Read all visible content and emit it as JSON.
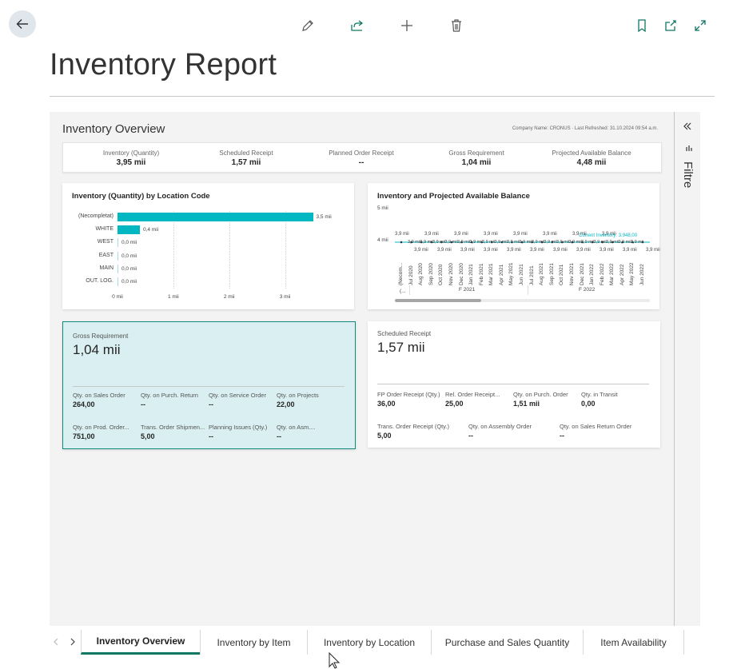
{
  "page": {
    "title": "Inventory Report"
  },
  "toolbar": {
    "icons": [
      "pencil-icon",
      "share-icon",
      "plus-icon",
      "trash-icon",
      "bookmark-icon",
      "open-in-new-window-icon",
      "expand-icon"
    ]
  },
  "filter_pane": {
    "label": "Filtre"
  },
  "overview": {
    "title": "Inventory Overview",
    "meta": "Company Name: CRONUS · Last Refreshed: 31.10.2024 09:54 a.m.",
    "kpis": [
      {
        "label": "Inventory (Quantity)",
        "value": "3,95 mii"
      },
      {
        "label": "Scheduled Receipt",
        "value": "1,57 mii"
      },
      {
        "label": "Planned Order Receipt",
        "value": "--"
      },
      {
        "label": "Gross Requirement",
        "value": "1,04 mii"
      },
      {
        "label": "Projected Available Balance",
        "value": "4,48 mii"
      }
    ]
  },
  "location_chart": {
    "title": "Inventory (Quantity) by Location Code",
    "categories": [
      "(Necompletat)",
      "WHITE",
      "WEST",
      "EAST",
      "MAIN",
      "OUT. LOG."
    ],
    "values": [
      3.5,
      0.4,
      0,
      0,
      0,
      0
    ],
    "value_labels": [
      "3,5 mii",
      "0,4 mii",
      "0,0 mii",
      "0,0 mii",
      "0,0 mii",
      "0,0 mii"
    ],
    "x_ticks": [
      "0 mii",
      "1 mii",
      "2 mii",
      "3 mii"
    ],
    "xlim": [
      0,
      3.55
    ]
  },
  "balance_chart": {
    "title": "Inventory and Projected Available Balance",
    "y_ticks": [
      "5 mii",
      "4 mii"
    ],
    "upper_labels": [
      "3,9 mii",
      "3,9 mii",
      "3,9 mii",
      "3,9 mii",
      "3,9 mii",
      "3,9 mii",
      "3,9 mii",
      "3,9 mii"
    ],
    "middle_labels": [
      "3,9 mii",
      "3,9 mii",
      "3,9 mii",
      "3,9 mii",
      "3,9 mii",
      "3,9 mii",
      "3,9 mii",
      "3,9 mii",
      "3,9 mii",
      "3,9 mii",
      "3,9 mii",
      "3,9 mii",
      "3,9 mii",
      "3,9 mii",
      "3,9 mii",
      "3,9 mii",
      "3,9 mii",
      "3,9 mii",
      "3,9 mii"
    ],
    "lower_labels": [
      "3,9 mii",
      "3,9 mii",
      "3,9 mii",
      "3,9 mii",
      "3,9 mii",
      "3,9 mii",
      "3,9 mii",
      "3,9 mii",
      "3,9 mii",
      "3,9 mii",
      "3,9 mii"
    ],
    "current_label": "Current Inventory: 3.948,00",
    "months": [
      "(Necom...",
      "Jul 2020",
      "Aug 2020",
      "Sep 2020",
      "Oct 2020",
      "Nov 2020",
      "Dec 2020",
      "Jan 2021",
      "Feb 2021",
      "Mar 2021",
      "Apr 2021",
      "May 2021",
      "Jun 2021",
      "Jul 2021",
      "Aug 2021",
      "Sep 2021",
      "Oct 2021",
      "Nov 2021",
      "Dec 2021",
      "Jan 2022",
      "Feb 2022",
      "Mar 2022",
      "Apr 2022",
      "May 2022",
      "Jun 2022"
    ],
    "groups": [
      "(...",
      "F 2021",
      "F 2022"
    ],
    "colors": {
      "line": "#01b8c2",
      "current": "#01b8c2"
    }
  },
  "gross_card": {
    "title": "Gross Requirement",
    "value": "1,04 mii",
    "stats": [
      {
        "label": "Qty. on Sales Order",
        "value": "264,00"
      },
      {
        "label": "Qty. on Purch. Return",
        "value": "--"
      },
      {
        "label": "Qty. on Service Order",
        "value": "--"
      },
      {
        "label": "Qty. on Projects",
        "value": "22,00"
      },
      {
        "label": "Qty. on Prod. Order...",
        "value": "751,00"
      },
      {
        "label": "Trans. Order Shipmen...",
        "value": "5,00"
      },
      {
        "label": "Planning Issues (Qty.)",
        "value": "--"
      },
      {
        "label": "Qty. on Asm....",
        "value": "--"
      }
    ]
  },
  "scheduled_card": {
    "title": "Scheduled Receipt",
    "value": "1,57 mii",
    "stats": [
      {
        "label": "FP Order Receipt (Qty.)",
        "value": "36,00"
      },
      {
        "label": "Rel. Order Receipt...",
        "value": "25,00"
      },
      {
        "label": "Qty. on Purch. Order",
        "value": "1,51 mii"
      },
      {
        "label": "Qty. in Transit",
        "value": "0,00"
      },
      {
        "label": "Trans. Order Receipt (Qty.)",
        "value": "5,00"
      },
      {
        "label": "Qty. on Assembly Order",
        "value": "--"
      },
      {
        "label": "Qty. on Sales Return Order",
        "value": "--"
      }
    ]
  },
  "tabs": [
    {
      "label": "Inventory Overview",
      "active": true
    },
    {
      "label": "Inventory by Item",
      "active": false
    },
    {
      "label": "Inventory by Location",
      "active": false
    },
    {
      "label": "Purchase and Sales Quantity",
      "active": false
    },
    {
      "label": "Item Availability",
      "active": false
    }
  ]
}
